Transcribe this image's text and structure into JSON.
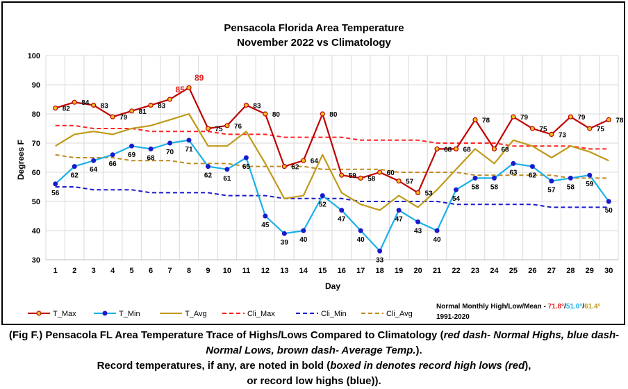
{
  "chart_data": {
    "type": "line",
    "title_line1": "Pensacola Florida Area Temperature",
    "title_line2": "November 2022 vs Climatology",
    "xlabel": "Day",
    "ylabel": "Degrees F",
    "ylim": [
      30,
      100
    ],
    "yticks": [
      30,
      40,
      50,
      60,
      70,
      80,
      90,
      100
    ],
    "categories": [
      1,
      2,
      3,
      4,
      5,
      6,
      7,
      8,
      9,
      10,
      11,
      12,
      13,
      14,
      15,
      16,
      17,
      18,
      19,
      20,
      21,
      22,
      23,
      24,
      25,
      26,
      27,
      28,
      29,
      30
    ],
    "grid": true,
    "legend_position": "bottom",
    "series": [
      {
        "name": "T_Max",
        "color": "#c00000",
        "style": "solid-marker",
        "labels": true,
        "values": [
          82,
          84,
          83,
          79,
          81,
          83,
          85,
          89,
          75,
          76,
          83,
          80,
          62,
          64,
          80,
          59,
          58,
          60,
          57,
          53,
          68,
          68,
          78,
          68,
          79,
          75,
          73,
          79,
          75,
          78
        ]
      },
      {
        "name": "T_Min",
        "color": "#1ab0e8",
        "style": "solid-marker",
        "labels": true,
        "values": [
          56,
          62,
          64,
          66,
          69,
          68,
          70,
          71,
          62,
          61,
          65,
          45,
          39,
          40,
          52,
          47,
          40,
          33,
          47,
          43,
          40,
          54,
          58,
          58,
          63,
          62,
          57,
          58,
          59,
          50
        ]
      },
      {
        "name": "T_Avg",
        "color": "#c09a1a",
        "style": "solid",
        "values": [
          69,
          73,
          74,
          73,
          75,
          76,
          78,
          80,
          69,
          69,
          74,
          63,
          51,
          52,
          66,
          53,
          49,
          47,
          52,
          48,
          54,
          61,
          68,
          63,
          71,
          69,
          65,
          69,
          67,
          64
        ]
      },
      {
        "name": "Cli_Max",
        "color": "#ff2020",
        "style": "dash",
        "values": [
          76,
          76,
          75,
          75,
          75,
          74,
          74,
          74,
          74,
          73,
          73,
          73,
          72,
          72,
          72,
          72,
          71,
          71,
          71,
          71,
          70,
          70,
          70,
          70,
          69,
          69,
          69,
          69,
          68,
          68
        ]
      },
      {
        "name": "Cli_Min",
        "color": "#1a1acc",
        "style": "dash",
        "values": [
          55,
          55,
          54,
          54,
          54,
          53,
          53,
          53,
          53,
          52,
          52,
          52,
          51,
          51,
          51,
          51,
          50,
          50,
          50,
          50,
          50,
          49,
          49,
          49,
          49,
          49,
          48,
          48,
          48,
          48
        ]
      },
      {
        "name": "Cli_Avg",
        "color": "#c08a20",
        "style": "dash",
        "values": [
          66,
          65,
          65,
          65,
          64,
          64,
          64,
          63,
          63,
          63,
          62,
          62,
          62,
          62,
          61,
          61,
          61,
          61,
          60,
          60,
          60,
          60,
          59,
          59,
          59,
          59,
          59,
          58,
          58,
          58
        ]
      }
    ],
    "record_highlight": {
      "series": "T_Max",
      "days": [
        7,
        8
      ],
      "color": "#e02020"
    },
    "normals": {
      "label": "Normal Monthly High/Low/Mean - ",
      "high": "71.8°",
      "high_color": "#e02020",
      "low": "51.0°",
      "low_color": "#1ab0e8",
      "mean": "61.4°",
      "mean_color": "#c09a1a",
      "sep1": "/",
      "sep2": "/",
      "period": "1991-2020"
    }
  },
  "caption": {
    "line1_a": "(Fig F.) Pensacola FL Area Temperature Trace of Highs/Lows Compared to Climatology (",
    "line1_i": "red dash- Normal Highs, blue dash- Normal Lows, brown dash- Average Temp.",
    "line1_b": ").",
    "line2_a": "Record temperatures, if any, are noted in bold (",
    "line2_i": "boxed in denotes record high lows (red",
    "line2_b": "),",
    "line3_a": "or record low highs (blue)).",
    "line3_i": ""
  }
}
